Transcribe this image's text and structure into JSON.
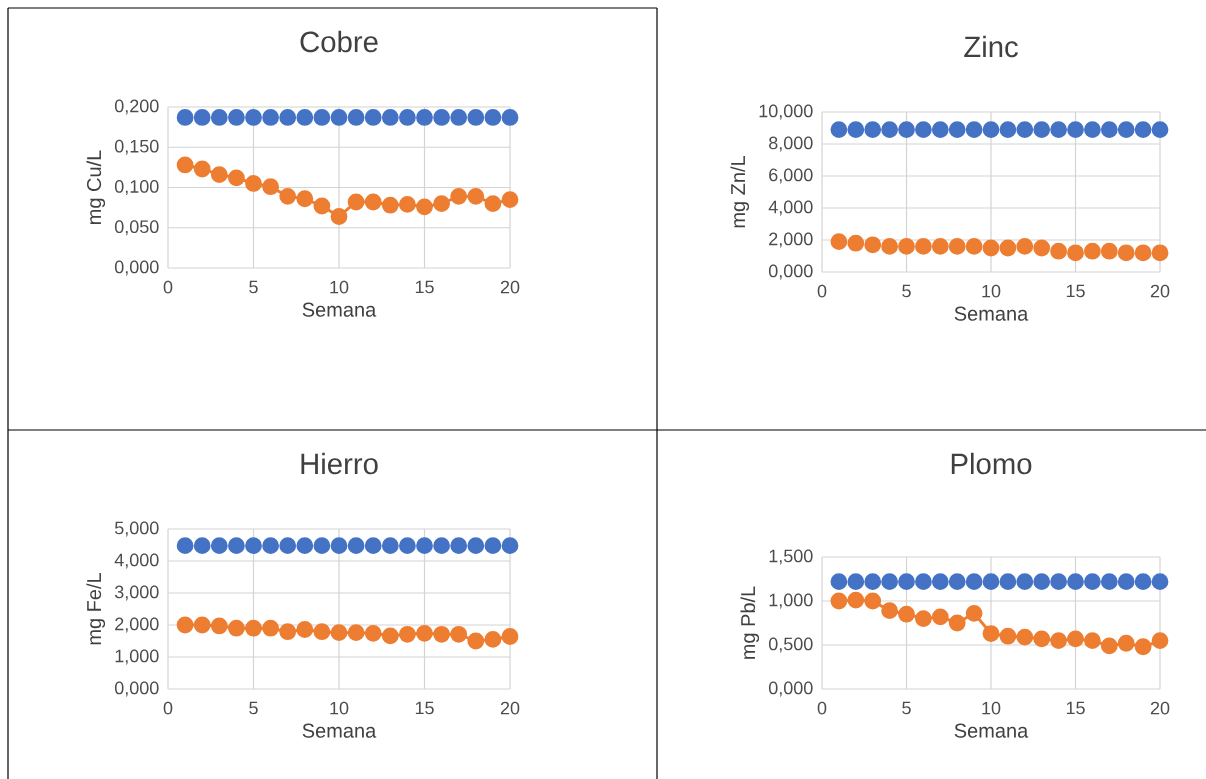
{
  "chart_data": [
    {
      "type": "line",
      "title": "Cobre",
      "xlabel": "Semana",
      "ylabel": "mg Cu/L",
      "x": [
        1,
        2,
        3,
        4,
        5,
        6,
        7,
        8,
        9,
        10,
        11,
        12,
        13,
        14,
        15,
        16,
        17,
        18,
        19,
        20
      ],
      "series": [
        {
          "type": "scatter",
          "color": "#4472c4",
          "values": [
            0.187,
            0.187,
            0.187,
            0.187,
            0.187,
            0.187,
            0.187,
            0.187,
            0.187,
            0.187,
            0.187,
            0.187,
            0.187,
            0.187,
            0.187,
            0.187,
            0.187,
            0.187,
            0.187,
            0.187
          ]
        },
        {
          "color": "#ed7d31",
          "values": [
            0.128,
            0.123,
            0.116,
            0.112,
            0.105,
            0.101,
            0.089,
            0.086,
            0.077,
            0.064,
            0.082,
            0.082,
            0.078,
            0.079,
            0.076,
            0.08,
            0.089,
            0.089,
            0.08,
            0.085
          ]
        }
      ],
      "xlim": [
        0,
        20
      ],
      "xticks": [
        0,
        5,
        10,
        15,
        20
      ],
      "ylim": [
        0,
        0.2
      ],
      "yticks": [
        {
          "value": 0,
          "label": "0,000"
        },
        {
          "value": 0.05,
          "label": "0,050"
        },
        {
          "value": 0.1,
          "label": "0,100"
        },
        {
          "value": 0.15,
          "label": "0,150"
        },
        {
          "value": 0.2,
          "label": "0,200"
        }
      ],
      "grid": true,
      "marker": "circle",
      "line_style": "solid"
    },
    {
      "type": "line",
      "title": "Zinc",
      "xlabel": "Semana",
      "ylabel": "mg Zn/L",
      "x": [
        1,
        2,
        3,
        4,
        5,
        6,
        7,
        8,
        9,
        10,
        11,
        12,
        13,
        14,
        15,
        16,
        17,
        18,
        19,
        20
      ],
      "series": [
        {
          "type": "scatter",
          "color": "#4472c4",
          "values": [
            8.9,
            8.9,
            8.9,
            8.9,
            8.9,
            8.9,
            8.9,
            8.9,
            8.9,
            8.9,
            8.9,
            8.9,
            8.9,
            8.9,
            8.9,
            8.9,
            8.9,
            8.9,
            8.9,
            8.9
          ]
        },
        {
          "type": "scatter",
          "color": "#ed7d31",
          "values": [
            1.9,
            1.8,
            1.7,
            1.6,
            1.6,
            1.6,
            1.6,
            1.6,
            1.6,
            1.5,
            1.5,
            1.6,
            1.5,
            1.3,
            1.2,
            1.3,
            1.3,
            1.2,
            1.2,
            1.2
          ]
        }
      ],
      "xlim": [
        0,
        20
      ],
      "xticks": [
        0,
        5,
        10,
        15,
        20
      ],
      "ylim": [
        0,
        10
      ],
      "yticks": [
        {
          "value": 0,
          "label": "0,000"
        },
        {
          "value": 2,
          "label": "2,000"
        },
        {
          "value": 4,
          "label": "4,000"
        },
        {
          "value": 6,
          "label": "6,000"
        },
        {
          "value": 8,
          "label": "8,000"
        },
        {
          "value": 10,
          "label": "10,000"
        }
      ],
      "grid": true,
      "marker": "circle",
      "line_style": "solid"
    },
    {
      "type": "line",
      "title": "Hierro",
      "xlabel": "Semana",
      "ylabel": "mg Fe/L",
      "x": [
        1,
        2,
        3,
        4,
        5,
        6,
        7,
        8,
        9,
        10,
        11,
        12,
        13,
        14,
        15,
        16,
        17,
        18,
        19,
        20
      ],
      "series": [
        {
          "type": "scatter",
          "color": "#4472c4",
          "values": [
            4.48,
            4.48,
            4.48,
            4.48,
            4.48,
            4.48,
            4.48,
            4.48,
            4.48,
            4.48,
            4.48,
            4.48,
            4.48,
            4.48,
            4.48,
            4.48,
            4.48,
            4.48,
            4.48,
            4.48
          ]
        },
        {
          "color": "#ed7d31",
          "values": [
            2.0,
            2.0,
            1.97,
            1.9,
            1.9,
            1.9,
            1.79,
            1.86,
            1.79,
            1.76,
            1.76,
            1.74,
            1.66,
            1.71,
            1.74,
            1.71,
            1.71,
            1.5,
            1.55,
            1.64
          ]
        }
      ],
      "xlim": [
        0,
        20
      ],
      "xticks": [
        0,
        5,
        10,
        15,
        20
      ],
      "ylim": [
        0,
        5
      ],
      "yticks": [
        {
          "value": 0,
          "label": "0,000"
        },
        {
          "value": 1,
          "label": "1,000"
        },
        {
          "value": 2,
          "label": "2,000"
        },
        {
          "value": 3,
          "label": "3,000"
        },
        {
          "value": 4,
          "label": "4,000"
        },
        {
          "value": 5,
          "label": "5,000"
        }
      ],
      "grid": true,
      "marker": "circle",
      "line_style": "solid"
    },
    {
      "type": "line",
      "title": "Plomo",
      "xlabel": "Semana",
      "ylabel": "mg Pb/L",
      "x": [
        1,
        2,
        3,
        4,
        5,
        6,
        7,
        8,
        9,
        10,
        11,
        12,
        13,
        14,
        15,
        16,
        17,
        18,
        19,
        20
      ],
      "series": [
        {
          "type": "scatter",
          "color": "#4472c4",
          "values": [
            1.22,
            1.22,
            1.22,
            1.22,
            1.22,
            1.22,
            1.22,
            1.22,
            1.22,
            1.22,
            1.22,
            1.22,
            1.22,
            1.22,
            1.22,
            1.22,
            1.22,
            1.22,
            1.22,
            1.22
          ]
        },
        {
          "color": "#ed7d31",
          "values": [
            1.0,
            1.01,
            1.0,
            0.89,
            0.85,
            0.8,
            0.82,
            0.75,
            0.86,
            0.63,
            0.6,
            0.59,
            0.57,
            0.55,
            0.57,
            0.55,
            0.49,
            0.52,
            0.48,
            0.55
          ]
        }
      ],
      "xlim": [
        0,
        20
      ],
      "xticks": [
        0,
        5,
        10,
        15,
        20
      ],
      "ylim": [
        0,
        1.5
      ],
      "yticks": [
        {
          "value": 0,
          "label": "0,000"
        },
        {
          "value": 0.5,
          "label": "0,500"
        },
        {
          "value": 1,
          "label": "1,000"
        },
        {
          "value": 1.5,
          "label": "1,500"
        }
      ],
      "grid": true,
      "marker": "circle",
      "line_style": "solid"
    }
  ]
}
